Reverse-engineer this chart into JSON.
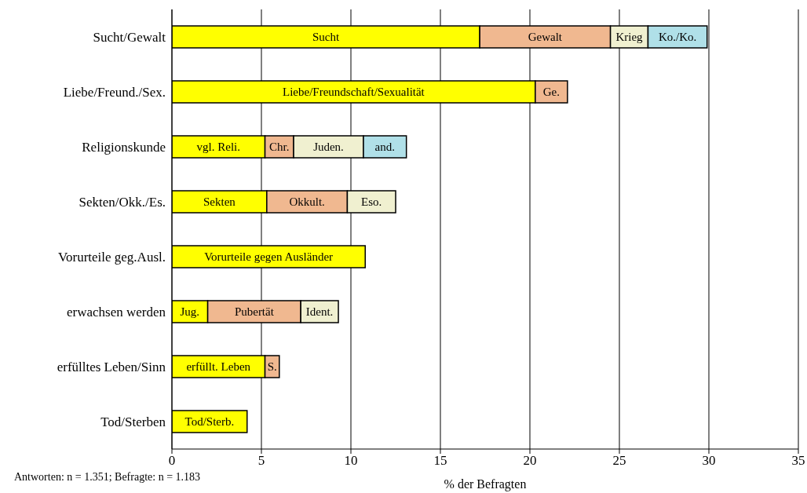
{
  "chart_data": {
    "type": "bar",
    "orientation": "horizontal",
    "stacked": true,
    "categories": [
      "Sucht/Gewalt",
      "Liebe/Freund./Sex.",
      "Religionskunde",
      "Sekten/Okk./Es.",
      "Vorurteile geg.Ausl.",
      "erwachsen werden",
      "erfülltes Leben/Sinn",
      "Tod/Sterben"
    ],
    "series": [
      {
        "color": "#ffff00",
        "values": [
          17.2,
          20.3,
          5.2,
          5.3,
          10.8,
          2.0,
          5.2,
          4.2
        ],
        "value_labels": [
          "Sucht",
          "Liebe/Freundschaft/Sexualität",
          "vgl. Reli.",
          "Sekten",
          "Vorurteile gegen Ausländer",
          "Jug.",
          "erfüllt. Leben",
          "Tod/Sterb."
        ]
      },
      {
        "color": "#f0b890",
        "values": [
          7.3,
          1.8,
          1.6,
          4.5,
          null,
          5.2,
          0.8,
          null
        ],
        "value_labels": [
          "Gewalt",
          "Ge.",
          "Chr.",
          "Okkult.",
          null,
          "Pubertät",
          "S.",
          null
        ]
      },
      {
        "color": "#f0f0d0",
        "values": [
          2.1,
          null,
          3.9,
          2.7,
          null,
          2.1,
          null,
          null
        ],
        "value_labels": [
          "Krieg",
          null,
          "Juden.",
          "Eso.",
          null,
          "Ident.",
          null,
          null
        ]
      },
      {
        "color": "#b0e0e8",
        "values": [
          3.3,
          null,
          2.4,
          null,
          null,
          null,
          null,
          null
        ],
        "value_labels": [
          "Ko./Ko.",
          null,
          "and.",
          null,
          null,
          null,
          null,
          null
        ]
      }
    ],
    "xlim": [
      0,
      35
    ],
    "xticks": [
      0,
      5,
      10,
      15,
      20,
      25,
      30,
      35
    ],
    "xlabel": "% der Befragten",
    "annotations": [
      "Antworten: n = 1.351; Befragte: n = 1.183"
    ],
    "grid": "x",
    "legend": false
  }
}
